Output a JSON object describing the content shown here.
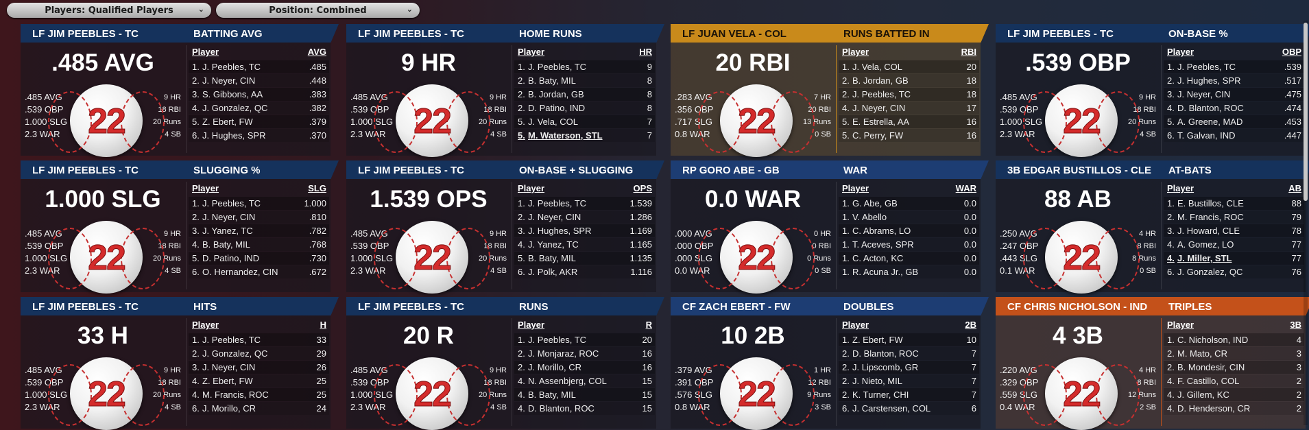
{
  "filters": {
    "players": "Players: Qualified Players",
    "position": "Position: Combined"
  },
  "panels": [
    {
      "header_player": "LF JIM PEEBLES - TC",
      "category": "BATTING AVG",
      "big_value": ".485 AVG",
      "jersey": "22",
      "avg": ".485 AVG",
      "obp": ".539 OBP",
      "slg": "1.000 SLG",
      "war": "2.3 WAR",
      "hr": "9 HR",
      "rbi": "18 RBI",
      "runs": "20 Runs",
      "sb": "4 SB",
      "col_player": "Player",
      "col_stat": "AVG",
      "theme": "blue",
      "rows": [
        {
          "rank": "1.",
          "name": "J. Peebles, TC",
          "value": ".485"
        },
        {
          "rank": "2.",
          "name": "J. Neyer, CIN",
          "value": ".448"
        },
        {
          "rank": "3.",
          "name": "S. Gibbons, AA",
          "value": ".383"
        },
        {
          "rank": "4.",
          "name": "J. Gonzalez, QC",
          "value": ".382"
        },
        {
          "rank": "5.",
          "name": "Z. Ebert, FW",
          "value": ".379"
        },
        {
          "rank": "6.",
          "name": "J. Hughes, SPR",
          "value": ".370"
        }
      ]
    },
    {
      "header_player": "LF JIM PEEBLES - TC",
      "category": "HOME RUNS",
      "big_value": "9 HR",
      "jersey": "22",
      "avg": ".485 AVG",
      "obp": ".539 OBP",
      "slg": "1.000 SLG",
      "war": "2.3 WAR",
      "hr": "9 HR",
      "rbi": "18 RBI",
      "runs": "20 Runs",
      "sb": "4 SB",
      "col_player": "Player",
      "col_stat": "HR",
      "theme": "blue",
      "rows": [
        {
          "rank": "1.",
          "name": "J. Peebles, TC",
          "value": "9"
        },
        {
          "rank": "2.",
          "name": "B. Baty, MIL",
          "value": "8"
        },
        {
          "rank": "2.",
          "name": "B. Jordan, GB",
          "value": "8"
        },
        {
          "rank": "2.",
          "name": "D. Patino, IND",
          "value": "8"
        },
        {
          "rank": "5.",
          "name": "J. Vela, COL",
          "value": "7"
        },
        {
          "rank": "5.",
          "name": "M. Waterson, STL",
          "value": "7",
          "underline": true
        }
      ]
    },
    {
      "header_player": "LF JUAN VELA - COL",
      "category": "RUNS BATTED IN",
      "big_value": "20 RBI",
      "jersey": "22",
      "avg": ".283 AVG",
      "obp": ".356 OBP",
      "slg": ".717 SLG",
      "war": "0.8 WAR",
      "hr": "7 HR",
      "rbi": "20 RBI",
      "runs": "13 Runs",
      "sb": "0 SB",
      "col_player": "Player",
      "col_stat": "RBI",
      "theme": "gold",
      "rows": [
        {
          "rank": "1.",
          "name": "J. Vela, COL",
          "value": "20"
        },
        {
          "rank": "2.",
          "name": "B. Jordan, GB",
          "value": "18"
        },
        {
          "rank": "2.",
          "name": "J. Peebles, TC",
          "value": "18"
        },
        {
          "rank": "4.",
          "name": "J. Neyer, CIN",
          "value": "17"
        },
        {
          "rank": "5.",
          "name": "E. Estrella, AA",
          "value": "16"
        },
        {
          "rank": "5.",
          "name": "C. Perry, FW",
          "value": "16"
        }
      ]
    },
    {
      "header_player": "LF JIM PEEBLES - TC",
      "category": "ON-BASE %",
      "big_value": ".539 OBP",
      "jersey": "22",
      "avg": ".485 AVG",
      "obp": ".539 OBP",
      "slg": "1.000 SLG",
      "war": "2.3 WAR",
      "hr": "9 HR",
      "rbi": "18 RBI",
      "runs": "20 Runs",
      "sb": "4 SB",
      "col_player": "Player",
      "col_stat": "OBP",
      "theme": "blue",
      "rows": [
        {
          "rank": "1.",
          "name": "J. Peebles, TC",
          "value": ".539"
        },
        {
          "rank": "2.",
          "name": "J. Hughes, SPR",
          "value": ".517"
        },
        {
          "rank": "3.",
          "name": "J. Neyer, CIN",
          "value": ".475"
        },
        {
          "rank": "4.",
          "name": "D. Blanton, ROC",
          "value": ".474"
        },
        {
          "rank": "5.",
          "name": "A. Greene, MAD",
          "value": ".453"
        },
        {
          "rank": "6.",
          "name": "T. Galvan, IND",
          "value": ".447"
        }
      ]
    },
    {
      "header_player": "LF JIM PEEBLES - TC",
      "category": "SLUGGING %",
      "big_value": "1.000 SLG",
      "jersey": "22",
      "avg": ".485 AVG",
      "obp": ".539 OBP",
      "slg": "1.000 SLG",
      "war": "2.3 WAR",
      "hr": "9 HR",
      "rbi": "18 RBI",
      "runs": "20 Runs",
      "sb": "4 SB",
      "col_player": "Player",
      "col_stat": "SLG",
      "theme": "blue",
      "rows": [
        {
          "rank": "1.",
          "name": "J. Peebles, TC",
          "value": "1.000"
        },
        {
          "rank": "2.",
          "name": "J. Neyer, CIN",
          "value": ".810"
        },
        {
          "rank": "3.",
          "name": "J. Yanez, TC",
          "value": ".782"
        },
        {
          "rank": "4.",
          "name": "B. Baty, MIL",
          "value": ".768"
        },
        {
          "rank": "5.",
          "name": "D. Patino, IND",
          "value": ".730"
        },
        {
          "rank": "6.",
          "name": "O. Hernandez, CIN",
          "value": ".672"
        }
      ]
    },
    {
      "header_player": "LF JIM PEEBLES - TC",
      "category": "ON-BASE + SLUGGING",
      "big_value": "1.539 OPS",
      "jersey": "22",
      "avg": ".485 AVG",
      "obp": ".539 OBP",
      "slg": "1.000 SLG",
      "war": "2.3 WAR",
      "hr": "9 HR",
      "rbi": "18 RBI",
      "runs": "20 Runs",
      "sb": "4 SB",
      "col_player": "Player",
      "col_stat": "OPS",
      "theme": "blue",
      "rows": [
        {
          "rank": "1.",
          "name": "J. Peebles, TC",
          "value": "1.539"
        },
        {
          "rank": "2.",
          "name": "J. Neyer, CIN",
          "value": "1.286"
        },
        {
          "rank": "3.",
          "name": "J. Hughes, SPR",
          "value": "1.169"
        },
        {
          "rank": "4.",
          "name": "J. Yanez, TC",
          "value": "1.165"
        },
        {
          "rank": "5.",
          "name": "B. Baty, MIL",
          "value": "1.135"
        },
        {
          "rank": "6.",
          "name": "J. Polk, AKR",
          "value": "1.116"
        }
      ]
    },
    {
      "header_player": "RP GORO ABE - GB",
      "category": "WAR",
      "big_value": "0.0 WAR",
      "jersey": "22",
      "avg": ".000 AVG",
      "obp": ".000 OBP",
      "slg": ".000 SLG",
      "war": "0.0 WAR",
      "hr": "0 HR",
      "rbi": "0 RBI",
      "runs": "0 Runs",
      "sb": "0 SB",
      "col_player": "Player",
      "col_stat": "WAR",
      "theme": "navy",
      "rows": [
        {
          "rank": "1.",
          "name": "G. Abe, GB",
          "value": "0.0"
        },
        {
          "rank": "1.",
          "name": "V. Abello",
          "value": "0.0"
        },
        {
          "rank": "1.",
          "name": "C. Abrams, LO",
          "value": "0.0"
        },
        {
          "rank": "1.",
          "name": "T. Aceves, SPR",
          "value": "0.0"
        },
        {
          "rank": "1.",
          "name": "C. Acton, KC",
          "value": "0.0"
        },
        {
          "rank": "1.",
          "name": "R. Acuna Jr., GB",
          "value": "0.0"
        }
      ]
    },
    {
      "header_player": "3B EDGAR BUSTILLOS - CLE",
      "category": "AT-BATS",
      "big_value": "88 AB",
      "jersey": "22",
      "avg": ".250 AVG",
      "obp": ".247 OBP",
      "slg": ".443 SLG",
      "war": "0.1 WAR",
      "hr": "4 HR",
      "rbi": "8 RBI",
      "runs": "8 Runs",
      "sb": "0 SB",
      "col_player": "Player",
      "col_stat": "AB",
      "theme": "blue",
      "rows": [
        {
          "rank": "1.",
          "name": "E. Bustillos, CLE",
          "value": "88"
        },
        {
          "rank": "2.",
          "name": "M. Francis, ROC",
          "value": "79"
        },
        {
          "rank": "3.",
          "name": "J. Howard, CLE",
          "value": "78"
        },
        {
          "rank": "4.",
          "name": "A. Gomez, LO",
          "value": "77"
        },
        {
          "rank": "4.",
          "name": "J. Miller, STL",
          "value": "77",
          "underline": true
        },
        {
          "rank": "6.",
          "name": "J. Gonzalez, QC",
          "value": "76"
        }
      ]
    },
    {
      "header_player": "LF JIM PEEBLES - TC",
      "category": "HITS",
      "big_value": "33 H",
      "jersey": "22",
      "avg": ".485 AVG",
      "obp": ".539 OBP",
      "slg": "1.000 SLG",
      "war": "2.3 WAR",
      "hr": "9 HR",
      "rbi": "18 RBI",
      "runs": "20 Runs",
      "sb": "4 SB",
      "col_player": "Player",
      "col_stat": "H",
      "theme": "blue",
      "rows": [
        {
          "rank": "1.",
          "name": "J. Peebles, TC",
          "value": "33"
        },
        {
          "rank": "2.",
          "name": "J. Gonzalez, QC",
          "value": "29"
        },
        {
          "rank": "3.",
          "name": "J. Neyer, CIN",
          "value": "26"
        },
        {
          "rank": "4.",
          "name": "Z. Ebert, FW",
          "value": "25"
        },
        {
          "rank": "4.",
          "name": "M. Francis, ROC",
          "value": "25"
        },
        {
          "rank": "6.",
          "name": "J. Morillo, CR",
          "value": "24"
        }
      ]
    },
    {
      "header_player": "LF JIM PEEBLES - TC",
      "category": "RUNS",
      "big_value": "20 R",
      "jersey": "22",
      "avg": ".485 AVG",
      "obp": ".539 OBP",
      "slg": "1.000 SLG",
      "war": "2.3 WAR",
      "hr": "9 HR",
      "rbi": "18 RBI",
      "runs": "20 Runs",
      "sb": "4 SB",
      "col_player": "Player",
      "col_stat": "R",
      "theme": "blue",
      "rows": [
        {
          "rank": "1.",
          "name": "J. Peebles, TC",
          "value": "20"
        },
        {
          "rank": "2.",
          "name": "J. Monjaraz, ROC",
          "value": "16"
        },
        {
          "rank": "2.",
          "name": "J. Morillo, CR",
          "value": "16"
        },
        {
          "rank": "4.",
          "name": "N. Assenbjerg, COL",
          "value": "15"
        },
        {
          "rank": "4.",
          "name": "B. Baty, MIL",
          "value": "15"
        },
        {
          "rank": "4.",
          "name": "D. Blanton, ROC",
          "value": "15"
        }
      ]
    },
    {
      "header_player": "CF ZACH EBERT - FW",
      "category": "DOUBLES",
      "big_value": "10 2B",
      "jersey": "22",
      "avg": ".379 AVG",
      "obp": ".391 OBP",
      "slg": ".576 SLG",
      "war": "0.8 WAR",
      "hr": "1 HR",
      "rbi": "12 RBI",
      "runs": "9 Runs",
      "sb": "3 SB",
      "col_player": "Player",
      "col_stat": "2B",
      "theme": "navy",
      "rows": [
        {
          "rank": "1.",
          "name": "Z. Ebert, FW",
          "value": "10"
        },
        {
          "rank": "2.",
          "name": "D. Blanton, ROC",
          "value": "7"
        },
        {
          "rank": "2.",
          "name": "J. Lipscomb, GR",
          "value": "7"
        },
        {
          "rank": "2.",
          "name": "J. Nieto, MIL",
          "value": "7"
        },
        {
          "rank": "2.",
          "name": "K. Turner, CHI",
          "value": "7"
        },
        {
          "rank": "6.",
          "name": "J. Carstensen, COL",
          "value": "6"
        }
      ]
    },
    {
      "header_player": "CF CHRIS NICHOLSON - IND",
      "category": "TRIPLES",
      "big_value": "4 3B",
      "jersey": "22",
      "avg": ".220 AVG",
      "obp": ".329 OBP",
      "slg": ".559 SLG",
      "war": "0.4 WAR",
      "hr": "4 HR",
      "rbi": "8 RBI",
      "runs": "12 Runs",
      "sb": "2 SB",
      "col_player": "Player",
      "col_stat": "3B",
      "theme": "orange",
      "rows": [
        {
          "rank": "1.",
          "name": "C. Nicholson, IND",
          "value": "4"
        },
        {
          "rank": "2.",
          "name": "M. Mato, CR",
          "value": "3"
        },
        {
          "rank": "2.",
          "name": "B. Mondesir, CIN",
          "value": "3"
        },
        {
          "rank": "4.",
          "name": "F. Castillo, COL",
          "value": "2"
        },
        {
          "rank": "4.",
          "name": "J. Gillem, KC",
          "value": "2"
        },
        {
          "rank": "4.",
          "name": "D. Henderson, CR",
          "value": "2"
        }
      ]
    }
  ]
}
